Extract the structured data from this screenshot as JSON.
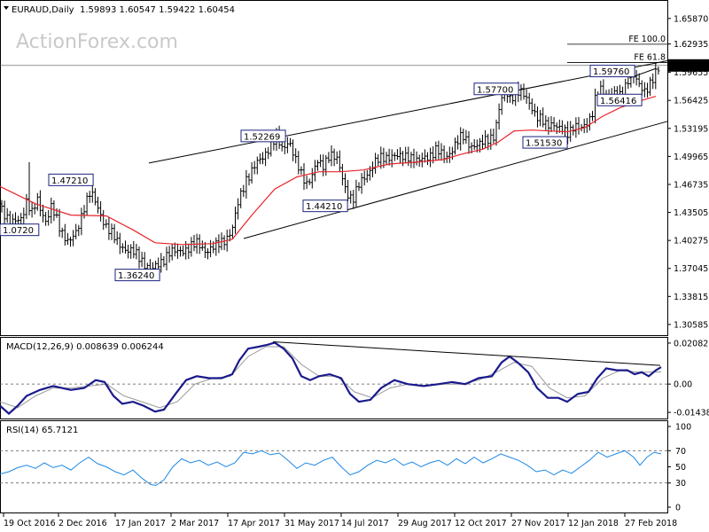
{
  "header": {
    "symbol": "EURAUD,Daily",
    "ohlc": "1.59893 1.60547 1.59422 1.60454"
  },
  "watermark": "ActionForex.com",
  "chart_data": {
    "type": "candlestick",
    "price_axis": {
      "ylim": [
        1.2935,
        1.679
      ],
      "ticks": [
        "1.65870",
        "1.62935",
        "1.59655",
        "1.56425",
        "1.53195",
        "1.49965",
        "1.46735",
        "1.43505",
        "1.40275",
        "1.37045",
        "1.33815",
        "1.30585"
      ],
      "current_price": "1.60454"
    },
    "date_labels": [
      "19 Oct 2016",
      "2 Dec 2016",
      "17 Jan 2017",
      "2 Mar 2017",
      "17 Apr 2017",
      "31 May 2017",
      "14 Jul 2017",
      "29 Aug 2017",
      "12 Oct 2017",
      "27 Nov 2017",
      "12 Jan 2018",
      "27 Feb 2018"
    ],
    "price_path": [
      [
        0,
        1.445
      ],
      [
        12,
        1.42
      ],
      [
        24,
        1.43
      ],
      [
        30,
        1.448
      ],
      [
        36,
        1.432
      ],
      [
        42,
        1.45
      ],
      [
        52,
        1.425
      ],
      [
        58,
        1.44
      ],
      [
        68,
        1.417
      ],
      [
        78,
        1.4
      ],
      [
        86,
        1.41
      ],
      [
        96,
        1.447
      ],
      [
        102,
        1.458
      ],
      [
        110,
        1.44
      ],
      [
        120,
        1.42
      ],
      [
        132,
        1.4
      ],
      [
        148,
        1.39
      ],
      [
        160,
        1.38
      ],
      [
        172,
        1.368
      ],
      [
        180,
        1.375
      ],
      [
        190,
        1.39
      ],
      [
        200,
        1.388
      ],
      [
        212,
        1.395
      ],
      [
        222,
        1.398
      ],
      [
        232,
        1.392
      ],
      [
        244,
        1.395
      ],
      [
        254,
        1.405
      ],
      [
        262,
        1.415
      ],
      [
        270,
        1.45
      ],
      [
        278,
        1.475
      ],
      [
        288,
        1.488
      ],
      [
        296,
        1.498
      ],
      [
        304,
        1.512
      ],
      [
        312,
        1.52
      ],
      [
        318,
        1.508
      ],
      [
        326,
        1.52
      ],
      [
        334,
        1.492
      ],
      [
        340,
        1.478
      ],
      [
        346,
        1.47
      ],
      [
        352,
        1.478
      ],
      [
        358,
        1.492
      ],
      [
        364,
        1.487
      ],
      [
        372,
        1.505
      ],
      [
        380,
        1.495
      ],
      [
        390,
        1.462
      ],
      [
        398,
        1.45
      ],
      [
        406,
        1.467
      ],
      [
        414,
        1.48
      ],
      [
        422,
        1.492
      ],
      [
        432,
        1.497
      ],
      [
        442,
        1.502
      ],
      [
        452,
        1.497
      ],
      [
        462,
        1.502
      ],
      [
        472,
        1.492
      ],
      [
        482,
        1.5
      ],
      [
        492,
        1.507
      ],
      [
        502,
        1.497
      ],
      [
        512,
        1.512
      ],
      [
        522,
        1.522
      ],
      [
        532,
        1.513
      ],
      [
        542,
        1.512
      ],
      [
        552,
        1.522
      ],
      [
        558,
        1.525
      ],
      [
        564,
        1.558
      ],
      [
        570,
        1.575
      ],
      [
        576,
        1.568
      ],
      [
        582,
        1.575
      ],
      [
        590,
        1.57
      ],
      [
        598,
        1.562
      ],
      [
        606,
        1.545
      ],
      [
        616,
        1.535
      ],
      [
        624,
        1.54
      ],
      [
        632,
        1.53
      ],
      [
        640,
        1.525
      ],
      [
        648,
        1.538
      ],
      [
        656,
        1.53
      ],
      [
        662,
        1.535
      ],
      [
        668,
        1.55
      ],
      [
        672,
        1.57
      ],
      [
        678,
        1.575
      ],
      [
        686,
        1.565
      ],
      [
        692,
        1.578
      ],
      [
        698,
        1.568
      ],
      [
        704,
        1.572
      ],
      [
        710,
        1.59
      ],
      [
        716,
        1.597
      ],
      [
        722,
        1.58
      ],
      [
        728,
        1.57
      ],
      [
        734,
        1.585
      ],
      [
        740,
        1.6
      ],
      [
        746,
        1.604
      ]
    ],
    "ma_path": [
      [
        0,
        1.465
      ],
      [
        40,
        1.445
      ],
      [
        80,
        1.432
      ],
      [
        120,
        1.431
      ],
      [
        150,
        1.415
      ],
      [
        175,
        1.4
      ],
      [
        205,
        1.398
      ],
      [
        240,
        1.399
      ],
      [
        262,
        1.404
      ],
      [
        285,
        1.433
      ],
      [
        310,
        1.462
      ],
      [
        335,
        1.476
      ],
      [
        360,
        1.482
      ],
      [
        385,
        1.482
      ],
      [
        410,
        1.484
      ],
      [
        440,
        1.491
      ],
      [
        470,
        1.493
      ],
      [
        500,
        1.496
      ],
      [
        520,
        1.502
      ],
      [
        545,
        1.508
      ],
      [
        562,
        1.516
      ],
      [
        580,
        1.529
      ],
      [
        600,
        1.53
      ],
      [
        620,
        1.529
      ],
      [
        640,
        1.528
      ],
      [
        660,
        1.533
      ],
      [
        680,
        1.546
      ],
      [
        700,
        1.556
      ],
      [
        720,
        1.563
      ],
      [
        740,
        1.569
      ]
    ],
    "trendlines": [
      {
        "name": "upper-channel",
        "from": [
          168,
          1.492
        ],
        "to": [
          753,
          1.61
        ]
      },
      {
        "name": "lower-channel",
        "from": [
          275,
          1.405
        ],
        "to": [
          753,
          1.54
        ]
      },
      {
        "name": "short-up",
        "from": [
          710,
          1.59
        ],
        "to": [
          740,
          1.601
        ]
      }
    ],
    "fib_levels": [
      {
        "label": "FE 100.0",
        "value": 1.629,
        "from_x": 640
      },
      {
        "label": "FE 61.8",
        "value": 1.608,
        "from_x": 640
      }
    ],
    "annotations": [
      {
        "text": "1.0720",
        "x": 0,
        "y": 1.4145
      },
      {
        "text": "1.47210",
        "x": 55,
        "y": 1.4721
      },
      {
        "text": "1.36240",
        "x": 130,
        "y": 1.3624
      },
      {
        "text": "1.52269",
        "x": 272,
        "y": 1.5227
      },
      {
        "text": "1.44210",
        "x": 342,
        "y": 1.4421
      },
      {
        "text": "1.57700",
        "x": 535,
        "y": 1.577
      },
      {
        "text": "1.51530",
        "x": 590,
        "y": 1.5153
      },
      {
        "text": "1.59760",
        "x": 666,
        "y": 1.5976
      },
      {
        "text": "1.56416",
        "x": 674,
        "y": 1.5642
      }
    ],
    "macd": {
      "title": "MACD(12,26,9) 0.008639 0.006244",
      "ylim": [
        -0.0175,
        0.0235
      ],
      "ticks": [
        "0.020827",
        "0.00",
        "-0.014386"
      ],
      "line": [
        [
          0,
          -0.011
        ],
        [
          10,
          -0.015
        ],
        [
          20,
          -0.011
        ],
        [
          30,
          -0.006
        ],
        [
          45,
          -0.003
        ],
        [
          60,
          -0.001
        ],
        [
          80,
          -0.003
        ],
        [
          95,
          -0.002
        ],
        [
          108,
          0.002
        ],
        [
          118,
          0.001
        ],
        [
          128,
          -0.006
        ],
        [
          138,
          -0.01
        ],
        [
          150,
          -0.009
        ],
        [
          162,
          -0.011
        ],
        [
          175,
          -0.014
        ],
        [
          185,
          -0.013
        ],
        [
          198,
          -0.005
        ],
        [
          210,
          0.002
        ],
        [
          222,
          0.004
        ],
        [
          236,
          0.003
        ],
        [
          250,
          0.003
        ],
        [
          262,
          0.005
        ],
        [
          270,
          0.012
        ],
        [
          280,
          0.018
        ],
        [
          292,
          0.019
        ],
        [
          302,
          0.02
        ],
        [
          310,
          0.021
        ],
        [
          320,
          0.018
        ],
        [
          330,
          0.013
        ],
        [
          340,
          0.004
        ],
        [
          350,
          0.002
        ],
        [
          360,
          0.004
        ],
        [
          372,
          0.005
        ],
        [
          385,
          0.003
        ],
        [
          395,
          -0.005
        ],
        [
          405,
          -0.009
        ],
        [
          418,
          -0.008
        ],
        [
          430,
          -0.002
        ],
        [
          445,
          0.002
        ],
        [
          460,
          0.0
        ],
        [
          478,
          -0.001
        ],
        [
          495,
          0.0
        ],
        [
          510,
          0.001
        ],
        [
          525,
          0.0
        ],
        [
          540,
          0.003
        ],
        [
          555,
          0.004
        ],
        [
          566,
          0.011
        ],
        [
          575,
          0.014
        ],
        [
          584,
          0.011
        ],
        [
          596,
          0.006
        ],
        [
          606,
          -0.002
        ],
        [
          618,
          -0.007
        ],
        [
          630,
          -0.007
        ],
        [
          640,
          -0.009
        ],
        [
          652,
          -0.005
        ],
        [
          664,
          -0.004
        ],
        [
          674,
          0.003
        ],
        [
          684,
          0.008
        ],
        [
          696,
          0.007
        ],
        [
          708,
          0.007
        ],
        [
          716,
          0.005
        ],
        [
          724,
          0.006
        ],
        [
          732,
          0.004
        ],
        [
          740,
          0.007
        ],
        [
          746,
          0.0086
        ]
      ],
      "signal": [
        [
          0,
          -0.009
        ],
        [
          20,
          -0.012
        ],
        [
          40,
          -0.006
        ],
        [
          60,
          -0.002
        ],
        [
          80,
          -0.002
        ],
        [
          100,
          -0.001
        ],
        [
          120,
          0.0
        ],
        [
          140,
          -0.006
        ],
        [
          160,
          -0.009
        ],
        [
          180,
          -0.012
        ],
        [
          200,
          -0.009
        ],
        [
          220,
          0.0
        ],
        [
          240,
          0.003
        ],
        [
          260,
          0.004
        ],
        [
          280,
          0.014
        ],
        [
          300,
          0.019
        ],
        [
          320,
          0.019
        ],
        [
          340,
          0.01
        ],
        [
          360,
          0.004
        ],
        [
          380,
          0.004
        ],
        [
          400,
          -0.004
        ],
        [
          420,
          -0.007
        ],
        [
          440,
          -0.002
        ],
        [
          460,
          0.0
        ],
        [
          480,
          -0.001
        ],
        [
          500,
          0.0
        ],
        [
          520,
          0.0
        ],
        [
          540,
          0.002
        ],
        [
          560,
          0.006
        ],
        [
          580,
          0.011
        ],
        [
          600,
          0.009
        ],
        [
          620,
          -0.002
        ],
        [
          640,
          -0.007
        ],
        [
          660,
          -0.006
        ],
        [
          680,
          0.003
        ],
        [
          700,
          0.007
        ],
        [
          720,
          0.006
        ],
        [
          746,
          0.0062
        ]
      ],
      "trendline": {
        "from": [
          308,
          0.0215
        ],
        "to": [
          745,
          0.0095
        ]
      }
    },
    "rsi": {
      "title": "RSI(14) 65.7121",
      "ylim": [
        0,
        100
      ],
      "ticks": [
        "100",
        "70",
        "50",
        "30",
        "0"
      ],
      "line": [
        [
          0,
          41
        ],
        [
          10,
          44
        ],
        [
          20,
          49
        ],
        [
          30,
          52
        ],
        [
          40,
          48
        ],
        [
          50,
          55
        ],
        [
          60,
          49
        ],
        [
          70,
          52
        ],
        [
          80,
          46
        ],
        [
          90,
          55
        ],
        [
          100,
          62
        ],
        [
          110,
          54
        ],
        [
          120,
          50
        ],
        [
          130,
          44
        ],
        [
          140,
          40
        ],
        [
          150,
          46
        ],
        [
          160,
          36
        ],
        [
          170,
          28
        ],
        [
          176,
          27
        ],
        [
          185,
          34
        ],
        [
          195,
          50
        ],
        [
          205,
          60
        ],
        [
          215,
          55
        ],
        [
          225,
          58
        ],
        [
          235,
          52
        ],
        [
          245,
          56
        ],
        [
          255,
          50
        ],
        [
          265,
          55
        ],
        [
          275,
          68
        ],
        [
          285,
          66
        ],
        [
          295,
          70
        ],
        [
          305,
          65
        ],
        [
          315,
          67
        ],
        [
          325,
          58
        ],
        [
          335,
          48
        ],
        [
          345,
          55
        ],
        [
          355,
          52
        ],
        [
          365,
          58
        ],
        [
          375,
          62
        ],
        [
          385,
          50
        ],
        [
          395,
          40
        ],
        [
          405,
          44
        ],
        [
          415,
          52
        ],
        [
          425,
          58
        ],
        [
          435,
          55
        ],
        [
          445,
          60
        ],
        [
          455,
          52
        ],
        [
          465,
          56
        ],
        [
          475,
          50
        ],
        [
          485,
          55
        ],
        [
          495,
          58
        ],
        [
          505,
          52
        ],
        [
          515,
          60
        ],
        [
          525,
          54
        ],
        [
          535,
          62
        ],
        [
          545,
          55
        ],
        [
          555,
          60
        ],
        [
          565,
          66
        ],
        [
          575,
          62
        ],
        [
          585,
          58
        ],
        [
          595,
          52
        ],
        [
          605,
          44
        ],
        [
          615,
          46
        ],
        [
          625,
          40
        ],
        [
          635,
          46
        ],
        [
          645,
          42
        ],
        [
          655,
          50
        ],
        [
          665,
          58
        ],
        [
          675,
          68
        ],
        [
          685,
          62
        ],
        [
          695,
          66
        ],
        [
          705,
          70
        ],
        [
          715,
          62
        ],
        [
          722,
          52
        ],
        [
          730,
          62
        ],
        [
          738,
          68
        ],
        [
          746,
          66
        ]
      ]
    }
  }
}
